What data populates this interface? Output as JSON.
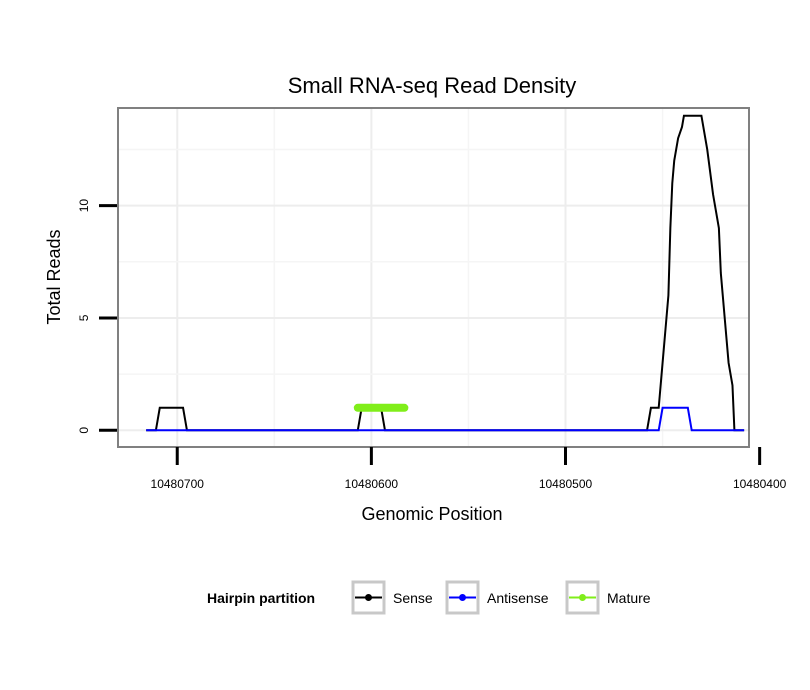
{
  "chart_data": {
    "type": "line",
    "title": "Small RNA-seq Read Density",
    "xlabel": "Genomic Position",
    "ylabel": "Total Reads",
    "x_reversed": true,
    "xlim": [
      10480406,
      10480730
    ],
    "ylim": [
      -0.7,
      14.3
    ],
    "x_ticks": [
      10480700,
      10480600,
      10480500,
      10480400
    ],
    "x_tick_labels": [
      "10480700",
      "10480600",
      "10480500",
      "10480400"
    ],
    "y_ticks": [
      0,
      5,
      10
    ],
    "y_tick_labels": [
      "0",
      "5",
      "10"
    ],
    "grid": true,
    "legend": {
      "title": "Hairpin partition",
      "position": "bottom",
      "entries": [
        {
          "name": "Sense",
          "color": "#000000"
        },
        {
          "name": "Antisense",
          "color": "#0000ff"
        },
        {
          "name": "Mature",
          "color": "#80ee1a"
        }
      ]
    },
    "series": [
      {
        "name": "Sense",
        "color": "#000000",
        "x": [
          10480716,
          10480711,
          10480709,
          10480697,
          10480695,
          10480632,
          10480607,
          10480605,
          10480600,
          10480595,
          10480593,
          10480576,
          10480520,
          10480458,
          10480456,
          10480452,
          10480451,
          10480450,
          10480449,
          10480448,
          10480447,
          10480446,
          10480445,
          10480444,
          10480443,
          10480442,
          10480440,
          10480439,
          10480438,
          10480436,
          10480433,
          10480430,
          10480427,
          10480424,
          10480423,
          10480422,
          10480421,
          10480420,
          10480419,
          10480418,
          10480417,
          10480416,
          10480414,
          10480413,
          10480412,
          10480410,
          10480408
        ],
        "values": [
          0,
          0,
          1,
          1,
          0,
          0,
          0,
          1,
          1,
          1,
          0,
          0,
          0,
          0,
          1,
          1,
          2,
          3,
          4,
          5,
          6,
          9,
          11,
          12,
          12.5,
          13,
          13.5,
          14,
          14,
          14,
          14,
          14,
          12.5,
          10.5,
          10,
          9.5,
          9,
          7,
          6,
          5,
          4,
          3,
          2,
          0,
          0,
          0,
          0
        ]
      },
      {
        "name": "Antisense",
        "color": "#0000ff",
        "x": [
          10480716,
          10480458,
          10480452,
          10480450,
          10480437,
          10480435,
          10480430,
          10480408
        ],
        "values": [
          0,
          0,
          0,
          1,
          1,
          0,
          0,
          0
        ]
      },
      {
        "name": "Mature",
        "color": "#80ee1a",
        "x": [
          10480607,
          10480583
        ],
        "values": [
          1,
          1
        ]
      }
    ]
  }
}
